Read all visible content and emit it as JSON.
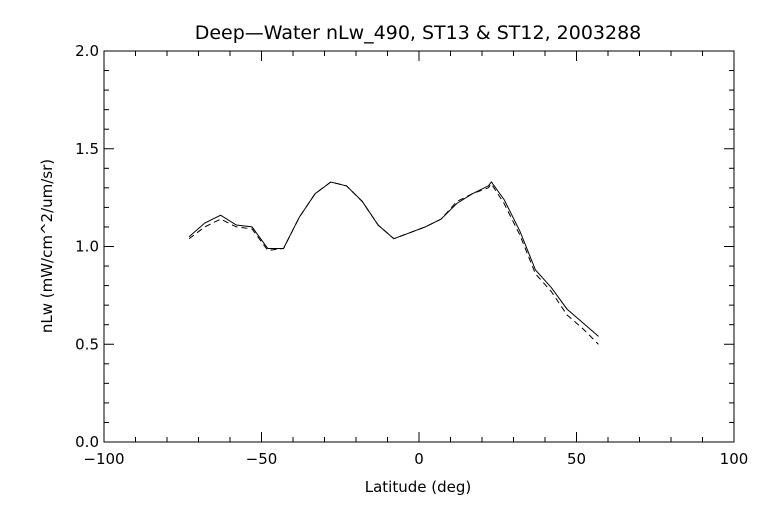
{
  "chart_data": {
    "type": "line",
    "title": "Deep—Water nLw_490, ST13 & ST12, 2003288",
    "xlabel": "Latitude (deg)",
    "ylabel": "nLw (mW/cm^2/um/sr)",
    "xlim": [
      -100,
      100
    ],
    "ylim": [
      0.0,
      2.0
    ],
    "x_ticks": [
      -100,
      -50,
      0,
      50,
      100
    ],
    "x_tick_labels": [
      "−100",
      "−50",
      "0",
      "50",
      "100"
    ],
    "y_ticks": [
      0.0,
      0.5,
      1.0,
      1.5,
      2.0
    ],
    "y_tick_labels": [
      "0.0",
      "0.5",
      "1.0",
      "1.5",
      "2.0"
    ],
    "grid": false,
    "legend": "none",
    "series": [
      {
        "style": "solid",
        "color": "#000000",
        "x": [
          -73,
          -68,
          -63,
          -58,
          -53,
          -48,
          -43,
          -38,
          -33,
          -28,
          -23,
          -18,
          -13,
          -8,
          -3,
          2,
          7,
          12,
          17,
          22,
          23,
          27,
          32,
          37,
          42,
          47,
          52,
          57
        ],
        "y": [
          1.05,
          1.12,
          1.16,
          1.11,
          1.1,
          0.99,
          0.99,
          1.15,
          1.27,
          1.33,
          1.31,
          1.23,
          1.11,
          1.04,
          1.07,
          1.1,
          1.14,
          1.22,
          1.27,
          1.31,
          1.33,
          1.24,
          1.08,
          0.88,
          0.79,
          0.68,
          0.61,
          0.54
        ]
      },
      {
        "style": "dashed",
        "color": "#000000",
        "x": [
          -73,
          -68,
          -63,
          -58,
          -53,
          -48,
          -43,
          -38,
          -33,
          -28,
          -23,
          -18,
          -13,
          -8,
          -3,
          2,
          7,
          12,
          17,
          22,
          23,
          27,
          32,
          37,
          42,
          47,
          52,
          57
        ],
        "y": [
          1.04,
          1.1,
          1.14,
          1.1,
          1.09,
          0.98,
          0.99,
          1.15,
          1.27,
          1.33,
          1.31,
          1.23,
          1.11,
          1.04,
          1.07,
          1.1,
          1.14,
          1.23,
          1.27,
          1.3,
          1.32,
          1.22,
          1.06,
          0.86,
          0.77,
          0.65,
          0.58,
          0.5
        ]
      }
    ]
  }
}
